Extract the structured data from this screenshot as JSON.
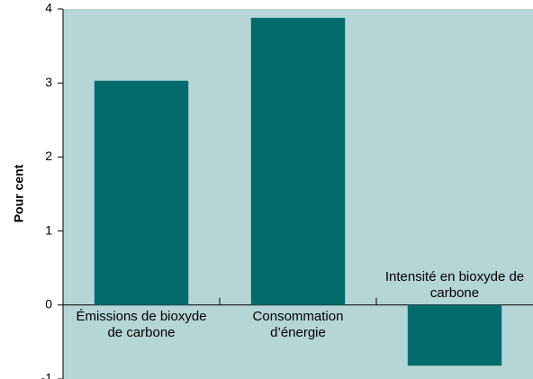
{
  "chart_data": {
    "type": "bar",
    "y_label": "Pour cent",
    "categories": [
      "Émissions de bioxyde de carbone",
      "Consommation d’énergie",
      "Intensité en bioxyde de carbone"
    ],
    "values": [
      3.03,
      3.88,
      -0.82
    ],
    "color": "#036b6b",
    "background": "#b5d5d7",
    "ylim": [
      -1,
      4
    ],
    "yticks": [
      -1,
      0,
      1,
      2,
      3,
      4
    ]
  }
}
